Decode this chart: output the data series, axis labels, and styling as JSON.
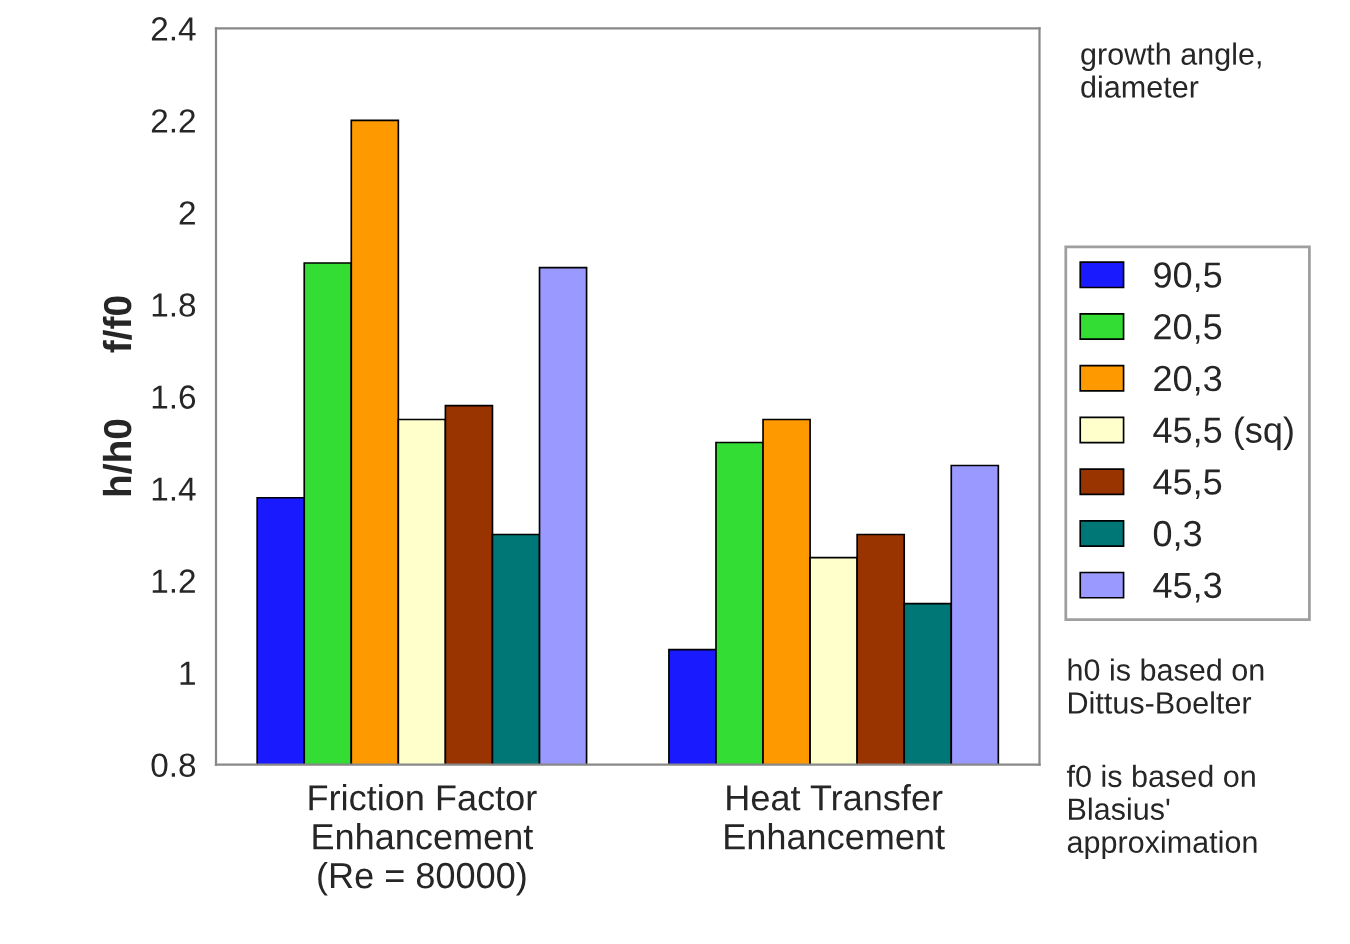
{
  "chart_data": {
    "type": "bar",
    "ylabel": "h/h0      f/f0",
    "legend_title": "growth angle,\ndiameter",
    "categories": [
      "Friction Factor\nEnhancement\n(Re = 80000)",
      "Heat Transfer\nEnhancement"
    ],
    "series": [
      {
        "name": "90,5",
        "color": "#1a1aff",
        "values": [
          1.38,
          1.05
        ]
      },
      {
        "name": "20,5",
        "color": "#33dd33",
        "values": [
          1.89,
          1.5
        ]
      },
      {
        "name": "20,3",
        "color": "#ff9900",
        "values": [
          2.2,
          1.55
        ]
      },
      {
        "name": "45,5 (sq)",
        "color": "#ffffcc",
        "values": [
          1.55,
          1.25
        ]
      },
      {
        "name": "45,5",
        "color": "#993300",
        "values": [
          1.58,
          1.3
        ]
      },
      {
        "name": "0,3",
        "color": "#007777",
        "values": [
          1.3,
          1.15
        ]
      },
      {
        "name": "45,3",
        "color": "#9999ff",
        "values": [
          1.88,
          1.45
        ]
      }
    ],
    "ylim": [
      0.8,
      2.4
    ],
    "yticks": [
      0.8,
      1,
      1.2,
      1.4,
      1.6,
      1.8,
      2,
      2.2,
      2.4
    ],
    "grid": false,
    "legend": "right",
    "annotations": [
      "h0 is based on\nDittus-Boelter",
      "f0 is based on\nBlasius'\napproximation"
    ]
  }
}
